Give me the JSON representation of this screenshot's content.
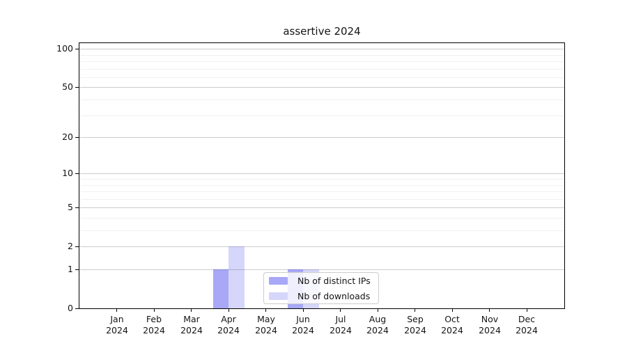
{
  "chart_data": {
    "type": "bar",
    "title": "assertive 2024",
    "categories": [
      "Jan",
      "Feb",
      "Mar",
      "Apr",
      "May",
      "Jun",
      "Jul",
      "Aug",
      "Sep",
      "Oct",
      "Nov",
      "Dec"
    ],
    "x_year": "2024",
    "series": [
      {
        "name": "Nb of distinct IPs",
        "color": "rgba(0,0,230,0.34)",
        "values": [
          0,
          0,
          0,
          1,
          0,
          1,
          0,
          0,
          0,
          0,
          0,
          0
        ]
      },
      {
        "name": "Nb of downloads",
        "color": "rgba(0,0,230,0.16)",
        "values": [
          0,
          0,
          0,
          2,
          0,
          1,
          0,
          0,
          0,
          0,
          0,
          0
        ]
      }
    ],
    "y_axis": {
      "scale": "log1p",
      "major_ticks": [
        0,
        1,
        2,
        5,
        10,
        20,
        50,
        100
      ],
      "minor_gridlines": [
        3,
        4,
        6,
        7,
        8,
        9,
        30,
        40,
        60,
        70,
        80,
        90
      ],
      "ylim": [
        0,
        111
      ]
    },
    "legend_location": "lower center",
    "grid": "both"
  },
  "colors": {
    "major_grid": "#cccccc",
    "minor_grid": "#f0f0f0",
    "axis": "#000000",
    "text": "#141414",
    "legend_border": "#cccccc",
    "legend_bg": "rgba(255,255,255,0.8)"
  }
}
